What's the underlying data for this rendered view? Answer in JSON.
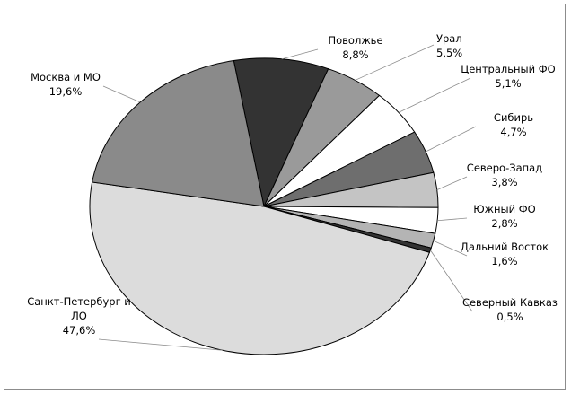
{
  "chart_data": {
    "type": "pie",
    "title": "",
    "categories": [
      "Поволжье",
      "Урал",
      "Центральный ФО",
      "Сибирь",
      "Северо-Запад",
      "Южный ФО",
      "Дальний Восток",
      "Северный Кавказ",
      "Санкт-Петербург и ЛО",
      "Москва и МО"
    ],
    "values": [
      8.8,
      5.5,
      5.1,
      4.7,
      3.8,
      2.8,
      1.6,
      0.5,
      47.6,
      19.6
    ],
    "value_labels": [
      "8,8%",
      "5,5%",
      "5,1%",
      "4,7%",
      "3,8%",
      "2,8%",
      "1,6%",
      "0,5%",
      "47,6%",
      "19,6%"
    ],
    "colors": [
      "#333333",
      "#9a9a9a",
      "#ffffff",
      "#6e6e6e",
      "#c4c4c4",
      "#ffffff",
      "#b4b4b4",
      "#333333",
      "#dcdcdc",
      "#8a8a8a"
    ],
    "legend": "none",
    "grid": false
  }
}
